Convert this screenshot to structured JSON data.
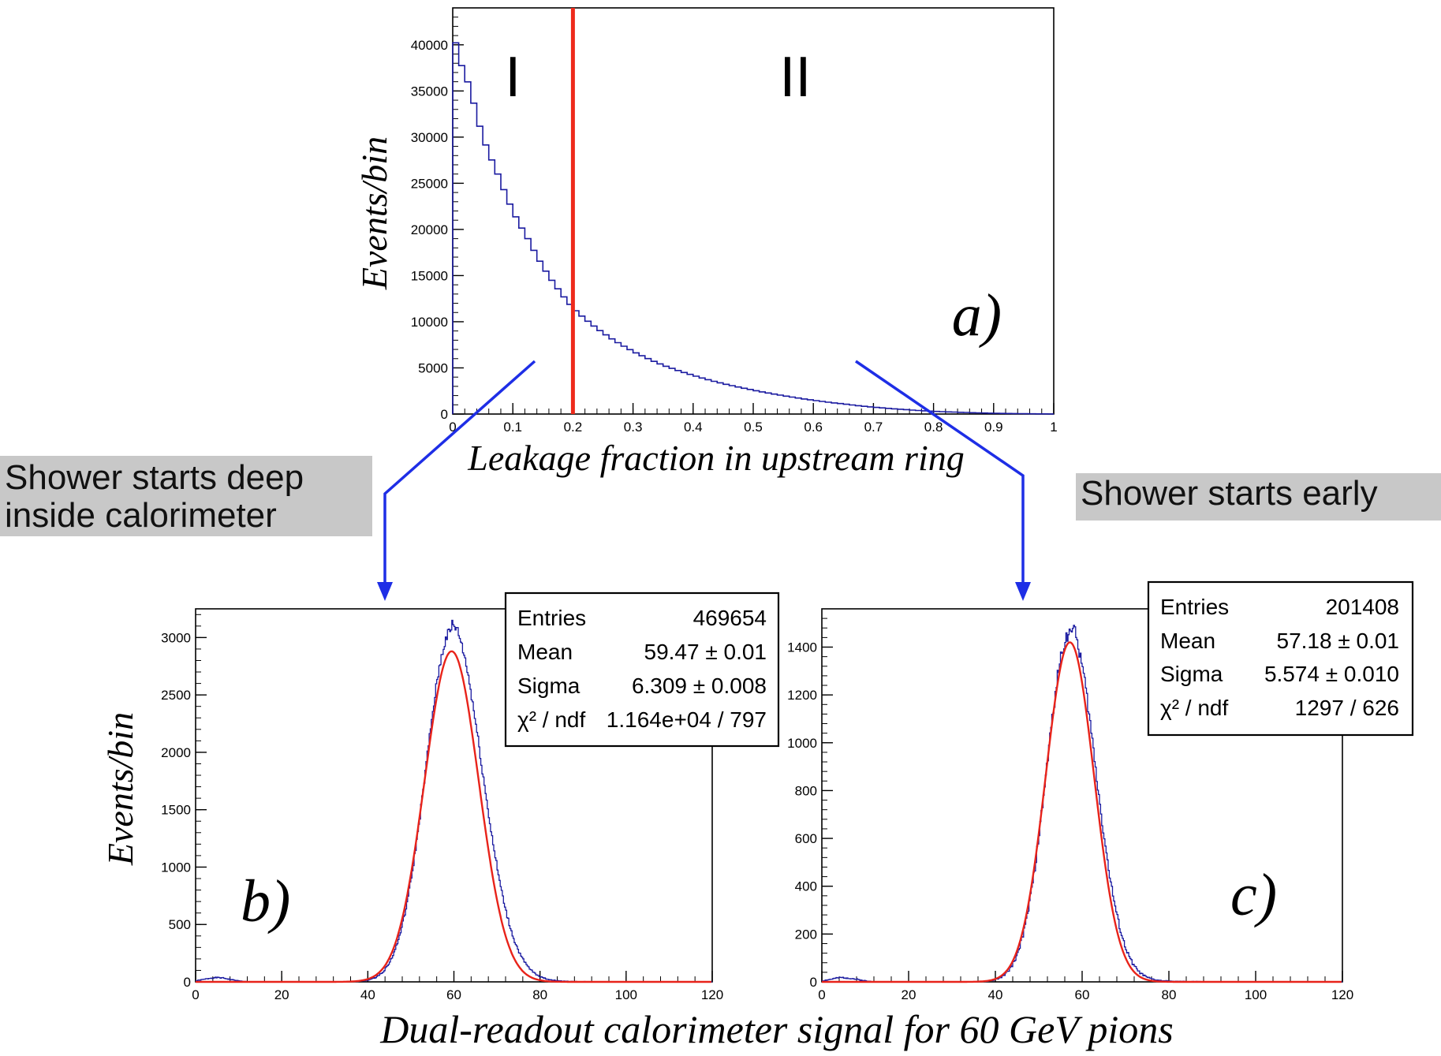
{
  "colors": {
    "hist": "#1a1aa0",
    "fit": "#e8231a",
    "cut": "#ee2a1b",
    "arrow": "#1e2ee6",
    "callout_bg": "#c8c8c8",
    "frame": "#000000"
  },
  "chart_data": [
    {
      "id": "a",
      "type": "histogram",
      "panel_label": "a)",
      "xlabel": "Leakage fraction in upstream ring",
      "ylabel": "Events/bin",
      "xlim": [
        0,
        1
      ],
      "ylim": [
        0,
        44000
      ],
      "x_ticks": [
        0,
        0.1,
        0.2,
        0.3,
        0.4,
        0.5,
        0.6,
        0.7,
        0.8,
        0.9,
        1
      ],
      "x_tick_labels": [
        "0",
        "0.1",
        "0.2",
        "0.3",
        "0.4",
        "0.5",
        "0.6",
        "0.7",
        "0.8",
        "0.9",
        "1"
      ],
      "y_ticks": [
        0,
        5000,
        10000,
        15000,
        20000,
        25000,
        30000,
        35000,
        40000
      ],
      "y_tick_labels": [
        "0",
        "5000",
        "10000",
        "15000",
        "20000",
        "25000",
        "30000",
        "35000",
        "40000"
      ],
      "bin_width": 0.01,
      "series": [
        {
          "kind": "step",
          "points": [
            [
              0.0,
              42000
            ],
            [
              0.01,
              38500
            ],
            [
              0.02,
              37000
            ],
            [
              0.03,
              35000
            ],
            [
              0.05,
              30000
            ],
            [
              0.075,
              26000
            ],
            [
              0.1,
              22000
            ],
            [
              0.125,
              19000
            ],
            [
              0.15,
              16000
            ],
            [
              0.2,
              11500
            ],
            [
              0.25,
              8800
            ],
            [
              0.3,
              6800
            ],
            [
              0.35,
              5300
            ],
            [
              0.4,
              4200
            ],
            [
              0.45,
              3300
            ],
            [
              0.5,
              2600
            ],
            [
              0.55,
              2000
            ],
            [
              0.6,
              1500
            ],
            [
              0.65,
              1100
            ],
            [
              0.7,
              750
            ],
            [
              0.75,
              500
            ],
            [
              0.8,
              300
            ],
            [
              0.85,
              180
            ],
            [
              0.9,
              90
            ],
            [
              0.95,
              40
            ],
            [
              1.0,
              10
            ]
          ]
        }
      ],
      "cut_line_x": 0.2,
      "regions": [
        {
          "label": "I",
          "x": 0.1
        },
        {
          "label": "II",
          "x": 0.57
        }
      ]
    },
    {
      "id": "b",
      "type": "histogram",
      "panel_label": "b)",
      "ylabel": "Events/bin",
      "xlim": [
        0,
        120
      ],
      "ylim": [
        0,
        3250
      ],
      "x_ticks": [
        0,
        20,
        40,
        60,
        80,
        100,
        120
      ],
      "x_tick_labels": [
        "0",
        "20",
        "40",
        "60",
        "80",
        "100",
        "120"
      ],
      "y_ticks": [
        0,
        500,
        1000,
        1500,
        2000,
        2500,
        3000
      ],
      "y_tick_labels": [
        "0",
        "500",
        "1000",
        "1500",
        "2000",
        "2500",
        "3000"
      ],
      "histogram_gauss": {
        "mean": 59.47,
        "sigma_left": 6.0,
        "sigma_right": 7.0,
        "peak": 3060
      },
      "fit": {
        "mean": 59.47,
        "sigma": 6.309,
        "amplitude": 2880
      },
      "stats": [
        {
          "label": "Entries",
          "value": "469654"
        },
        {
          "label": "Mean",
          "value": "59.47 ± 0.01"
        },
        {
          "label": "Sigma",
          "value": "6.309 ± 0.008"
        },
        {
          "label": "χ² / ndf",
          "value": "1.164e+04 / 797"
        }
      ]
    },
    {
      "id": "c",
      "type": "histogram",
      "panel_label": "c)",
      "xlim": [
        0,
        120
      ],
      "ylim": [
        0,
        1560
      ],
      "x_ticks": [
        0,
        20,
        40,
        60,
        80,
        100,
        120
      ],
      "x_tick_labels": [
        "0",
        "20",
        "40",
        "60",
        "80",
        "100",
        "120"
      ],
      "y_ticks": [
        0,
        200,
        400,
        600,
        800,
        1000,
        1200,
        1400
      ],
      "y_tick_labels": [
        "0",
        "200",
        "400",
        "600",
        "800",
        "1000",
        "1200",
        "1400"
      ],
      "histogram_gauss": {
        "mean": 57.18,
        "sigma_left": 5.4,
        "sigma_right": 5.9,
        "peak": 1460
      },
      "fit": {
        "mean": 57.18,
        "sigma": 5.574,
        "amplitude": 1420
      },
      "stats": [
        {
          "label": "Entries",
          "value": "201408"
        },
        {
          "label": "Mean",
          "value": "57.18 ± 0.01"
        },
        {
          "label": "Sigma",
          "value": "5.574 ± 0.010"
        },
        {
          "label": "χ² / ndf",
          "value": "1297 / 626"
        }
      ]
    }
  ],
  "shared_xlabel": "Dual-readout calorimeter signal for 60 GeV pions",
  "callouts": {
    "left": [
      "Shower starts deep",
      "inside calorimeter"
    ],
    "right": [
      "Shower starts early"
    ]
  }
}
